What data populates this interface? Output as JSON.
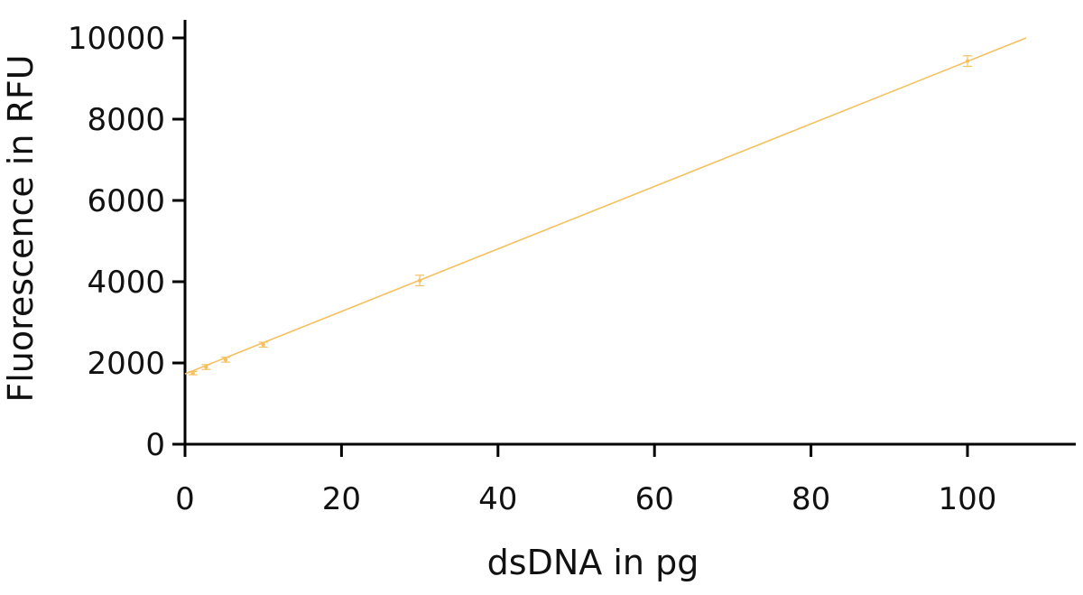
{
  "chart_data": {
    "type": "scatter",
    "title": "",
    "xlabel": "dsDNA in pg",
    "ylabel": "Fluorescence in RFU",
    "xlim": [
      0,
      113
    ],
    "ylim": [
      0,
      10500
    ],
    "xticks": [
      0,
      20,
      40,
      60,
      80,
      100
    ],
    "yticks": [
      0,
      2000,
      4000,
      6000,
      8000,
      10000
    ],
    "grid": false,
    "legend": "none",
    "color": "#f5c060",
    "series": [
      {
        "points": [
          {
            "x": 1,
            "y": 1750,
            "err": 40
          },
          {
            "x": 2.7,
            "y": 1900,
            "err": 60
          },
          {
            "x": 5.2,
            "y": 2080,
            "err": 60
          },
          {
            "x": 10,
            "y": 2450,
            "err": 60
          },
          {
            "x": 30,
            "y": 4030,
            "err": 130
          },
          {
            "x": 100,
            "y": 9430,
            "err": 130
          }
        ],
        "fit_line": {
          "x": [
            0,
            107.5
          ],
          "y": [
            1730,
            10000
          ]
        }
      }
    ]
  }
}
